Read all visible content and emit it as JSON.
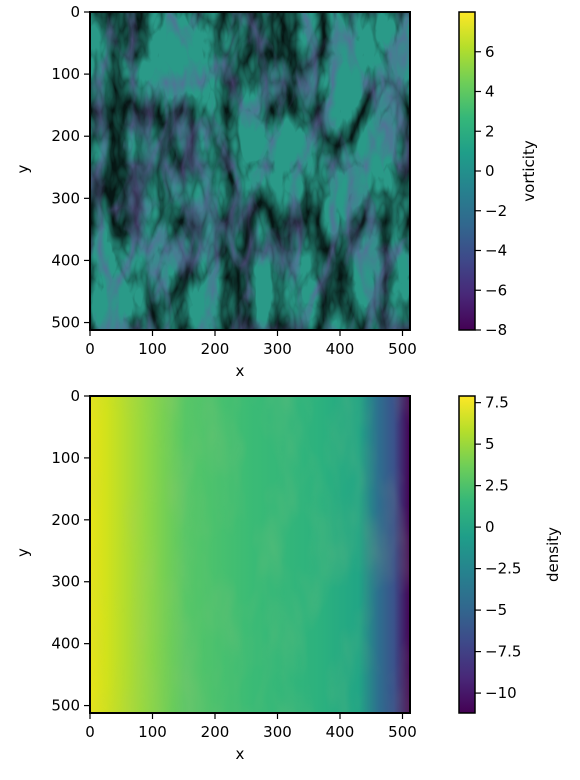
{
  "chart_data": [
    {
      "type": "heatmap",
      "title": "",
      "xlabel": "x",
      "ylabel": "y",
      "xlim": [
        0,
        512
      ],
      "ylim": [
        512,
        0
      ],
      "x_ticks": [
        0,
        100,
        200,
        300,
        400,
        500
      ],
      "y_ticks": [
        0,
        100,
        200,
        300,
        400,
        500
      ],
      "colormap": "viridis",
      "colorbar": {
        "label": "vorticity",
        "min": -8,
        "max": 8,
        "ticks": [
          6,
          4,
          2,
          0,
          -2,
          -4,
          -6,
          -8
        ]
      }
    },
    {
      "type": "heatmap",
      "title": "",
      "xlabel": "x",
      "ylabel": "y",
      "xlim": [
        0,
        512
      ],
      "ylim": [
        512,
        0
      ],
      "x_ticks": [
        0,
        100,
        200,
        300,
        400,
        500
      ],
      "y_ticks": [
        0,
        100,
        200,
        300,
        400,
        500
      ],
      "colormap": "viridis",
      "colorbar": {
        "label": "density",
        "min": -11.2,
        "max": 7.9,
        "ticks": [
          7.5,
          5.0,
          2.5,
          0.0,
          -2.5,
          -5.0,
          -7.5,
          -10.0
        ]
      }
    }
  ],
  "colors": {
    "viridis": [
      "#440154",
      "#482878",
      "#3e4989",
      "#31688e",
      "#26828e",
      "#1f9e89",
      "#35b779",
      "#6ece58",
      "#b5de2b",
      "#fde725"
    ]
  }
}
